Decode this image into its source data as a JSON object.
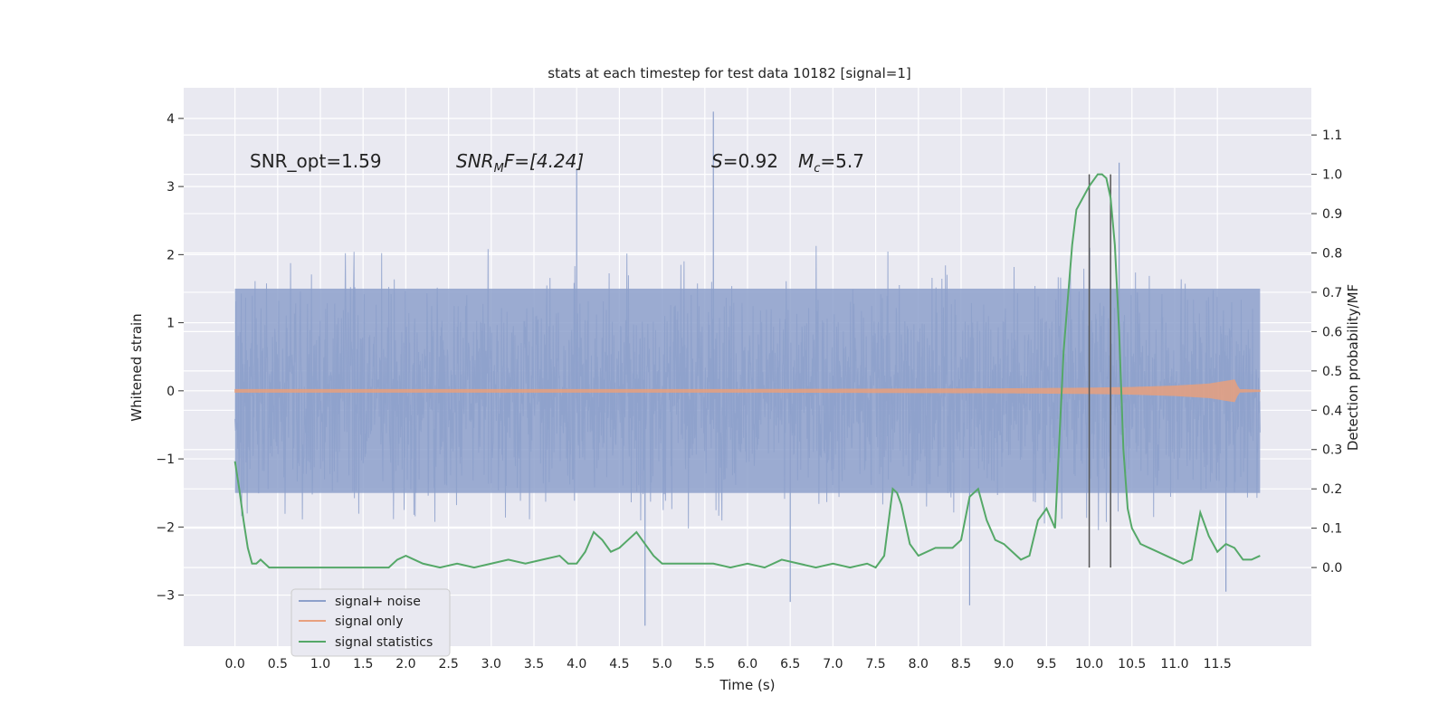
{
  "chart_data": {
    "type": "line",
    "title": "stats at each timestep for test data 10182 [signal=1]",
    "xlabel": "Time (s)",
    "ylabel_left": "Whitened strain",
    "ylabel_right": "Detection probability/MF",
    "xlim": [
      -0.6,
      12.6
    ],
    "ylim_left": [
      -3.75,
      4.45
    ],
    "ylim_right": [
      -0.2,
      1.22
    ],
    "x_ticks": [
      0.0,
      0.5,
      1.0,
      1.5,
      2.0,
      2.5,
      3.0,
      3.5,
      4.0,
      4.5,
      5.0,
      5.5,
      6.0,
      6.5,
      7.0,
      7.5,
      8.0,
      8.5,
      9.0,
      9.5,
      10.0,
      10.5,
      11.0,
      11.5
    ],
    "x_tick_labels": [
      "0.0",
      "0.5",
      "1.0",
      "1.5",
      "2.0",
      "2.5",
      "3.0",
      "3.5",
      "4.0",
      "4.5",
      "5.0",
      "5.5",
      "6.0",
      "6.5",
      "7.0",
      "7.5",
      "8.0",
      "8.5",
      "9.0",
      "9.5",
      "10.0",
      "10.5",
      "11.0",
      "11.5"
    ],
    "y_left_ticks": [
      -3,
      -2,
      -1,
      0,
      1,
      2,
      3,
      4
    ],
    "y_left_tick_labels": [
      "−3",
      "−2",
      "−1",
      "0",
      "1",
      "2",
      "3",
      "4"
    ],
    "y_right_ticks": [
      0.0,
      0.1,
      0.2,
      0.3,
      0.4,
      0.5,
      0.6,
      0.7,
      0.8,
      0.9,
      1.0,
      1.1
    ],
    "y_right_tick_labels": [
      "0.0",
      "0.1",
      "0.2",
      "0.3",
      "0.4",
      "0.5",
      "0.6",
      "0.7",
      "0.8",
      "0.9",
      "1.0",
      "1.1"
    ],
    "grid": true,
    "legend_position": "lower-left",
    "annotations": {
      "snr_opt": "SNR_opt=1.59",
      "snr_mf_base": "SNR",
      "snr_mf_sub": "M",
      "snr_mf_rest": "F=[4.24]",
      "s_letter": "S",
      "s_value": "=0.92",
      "mc_base": "M",
      "mc_sub": "c",
      "mc_value": "=5.7"
    },
    "series": [
      {
        "name": "signal+ noise",
        "color": "#8da0cb",
        "axis": "left",
        "x_range": [
          0.0,
          12.0
        ],
        "typical_band": [
          -1.5,
          1.5
        ],
        "peak_max": 4.1,
        "peak_min": -3.45
      },
      {
        "name": "signal only",
        "color": "#e8a07e",
        "axis": "left",
        "x_range": [
          0.0,
          12.0
        ],
        "envelope_x": [
          0.0,
          6.0,
          9.0,
          10.0,
          10.5,
          11.0,
          11.4,
          11.6,
          11.7,
          11.75,
          12.0
        ],
        "envelope_amp": [
          0.02,
          0.02,
          0.03,
          0.04,
          0.05,
          0.07,
          0.1,
          0.14,
          0.16,
          0.02,
          0.01
        ]
      },
      {
        "name": "signal statistics",
        "color": "#55a868",
        "axis": "right",
        "x": [
          0.0,
          0.05,
          0.1,
          0.15,
          0.2,
          0.25,
          0.3,
          0.4,
          0.5,
          0.6,
          0.8,
          1.0,
          1.2,
          1.4,
          1.6,
          1.8,
          1.9,
          2.0,
          2.1,
          2.2,
          2.4,
          2.6,
          2.8,
          3.0,
          3.2,
          3.4,
          3.6,
          3.8,
          3.9,
          4.0,
          4.1,
          4.2,
          4.3,
          4.4,
          4.5,
          4.6,
          4.7,
          4.8,
          4.9,
          5.0,
          5.2,
          5.4,
          5.6,
          5.8,
          6.0,
          6.2,
          6.4,
          6.6,
          6.8,
          7.0,
          7.2,
          7.4,
          7.5,
          7.6,
          7.7,
          7.75,
          7.8,
          7.9,
          8.0,
          8.2,
          8.4,
          8.5,
          8.6,
          8.7,
          8.8,
          8.9,
          9.0,
          9.1,
          9.2,
          9.3,
          9.4,
          9.5,
          9.6,
          9.7,
          9.8,
          9.85,
          9.9,
          10.0,
          10.1,
          10.15,
          10.2,
          10.25,
          10.3,
          10.35,
          10.4,
          10.45,
          10.5,
          10.6,
          10.8,
          10.9,
          11.0,
          11.1,
          11.2,
          11.3,
          11.4,
          11.5,
          11.6,
          11.7,
          11.8,
          11.9,
          12.0
        ],
        "values": [
          0.27,
          0.2,
          0.12,
          0.05,
          0.01,
          0.01,
          0.02,
          0.0,
          0.0,
          0.0,
          0.0,
          0.0,
          0.0,
          0.0,
          0.0,
          0.0,
          0.02,
          0.03,
          0.02,
          0.01,
          0.0,
          0.01,
          0.0,
          0.01,
          0.02,
          0.01,
          0.02,
          0.03,
          0.01,
          0.01,
          0.04,
          0.09,
          0.07,
          0.04,
          0.05,
          0.07,
          0.09,
          0.06,
          0.03,
          0.01,
          0.01,
          0.01,
          0.01,
          0.0,
          0.01,
          0.0,
          0.02,
          0.01,
          0.0,
          0.01,
          0.0,
          0.01,
          0.0,
          0.03,
          0.2,
          0.19,
          0.16,
          0.06,
          0.03,
          0.05,
          0.05,
          0.07,
          0.18,
          0.2,
          0.12,
          0.07,
          0.06,
          0.04,
          0.02,
          0.03,
          0.12,
          0.15,
          0.1,
          0.55,
          0.82,
          0.91,
          0.93,
          0.97,
          1.0,
          1.0,
          0.99,
          0.94,
          0.82,
          0.6,
          0.3,
          0.15,
          0.1,
          0.06,
          0.04,
          0.03,
          0.02,
          0.01,
          0.02,
          0.14,
          0.08,
          0.04,
          0.06,
          0.05,
          0.02,
          0.02,
          0.03
        ]
      }
    ],
    "vertical_lines": [
      {
        "x": 10.0,
        "y_top": 1.0,
        "y_bottom": 0.0,
        "color": "#555555"
      },
      {
        "x": 10.25,
        "y_top": 1.0,
        "y_bottom": 0.0,
        "color": "#555555"
      }
    ]
  }
}
